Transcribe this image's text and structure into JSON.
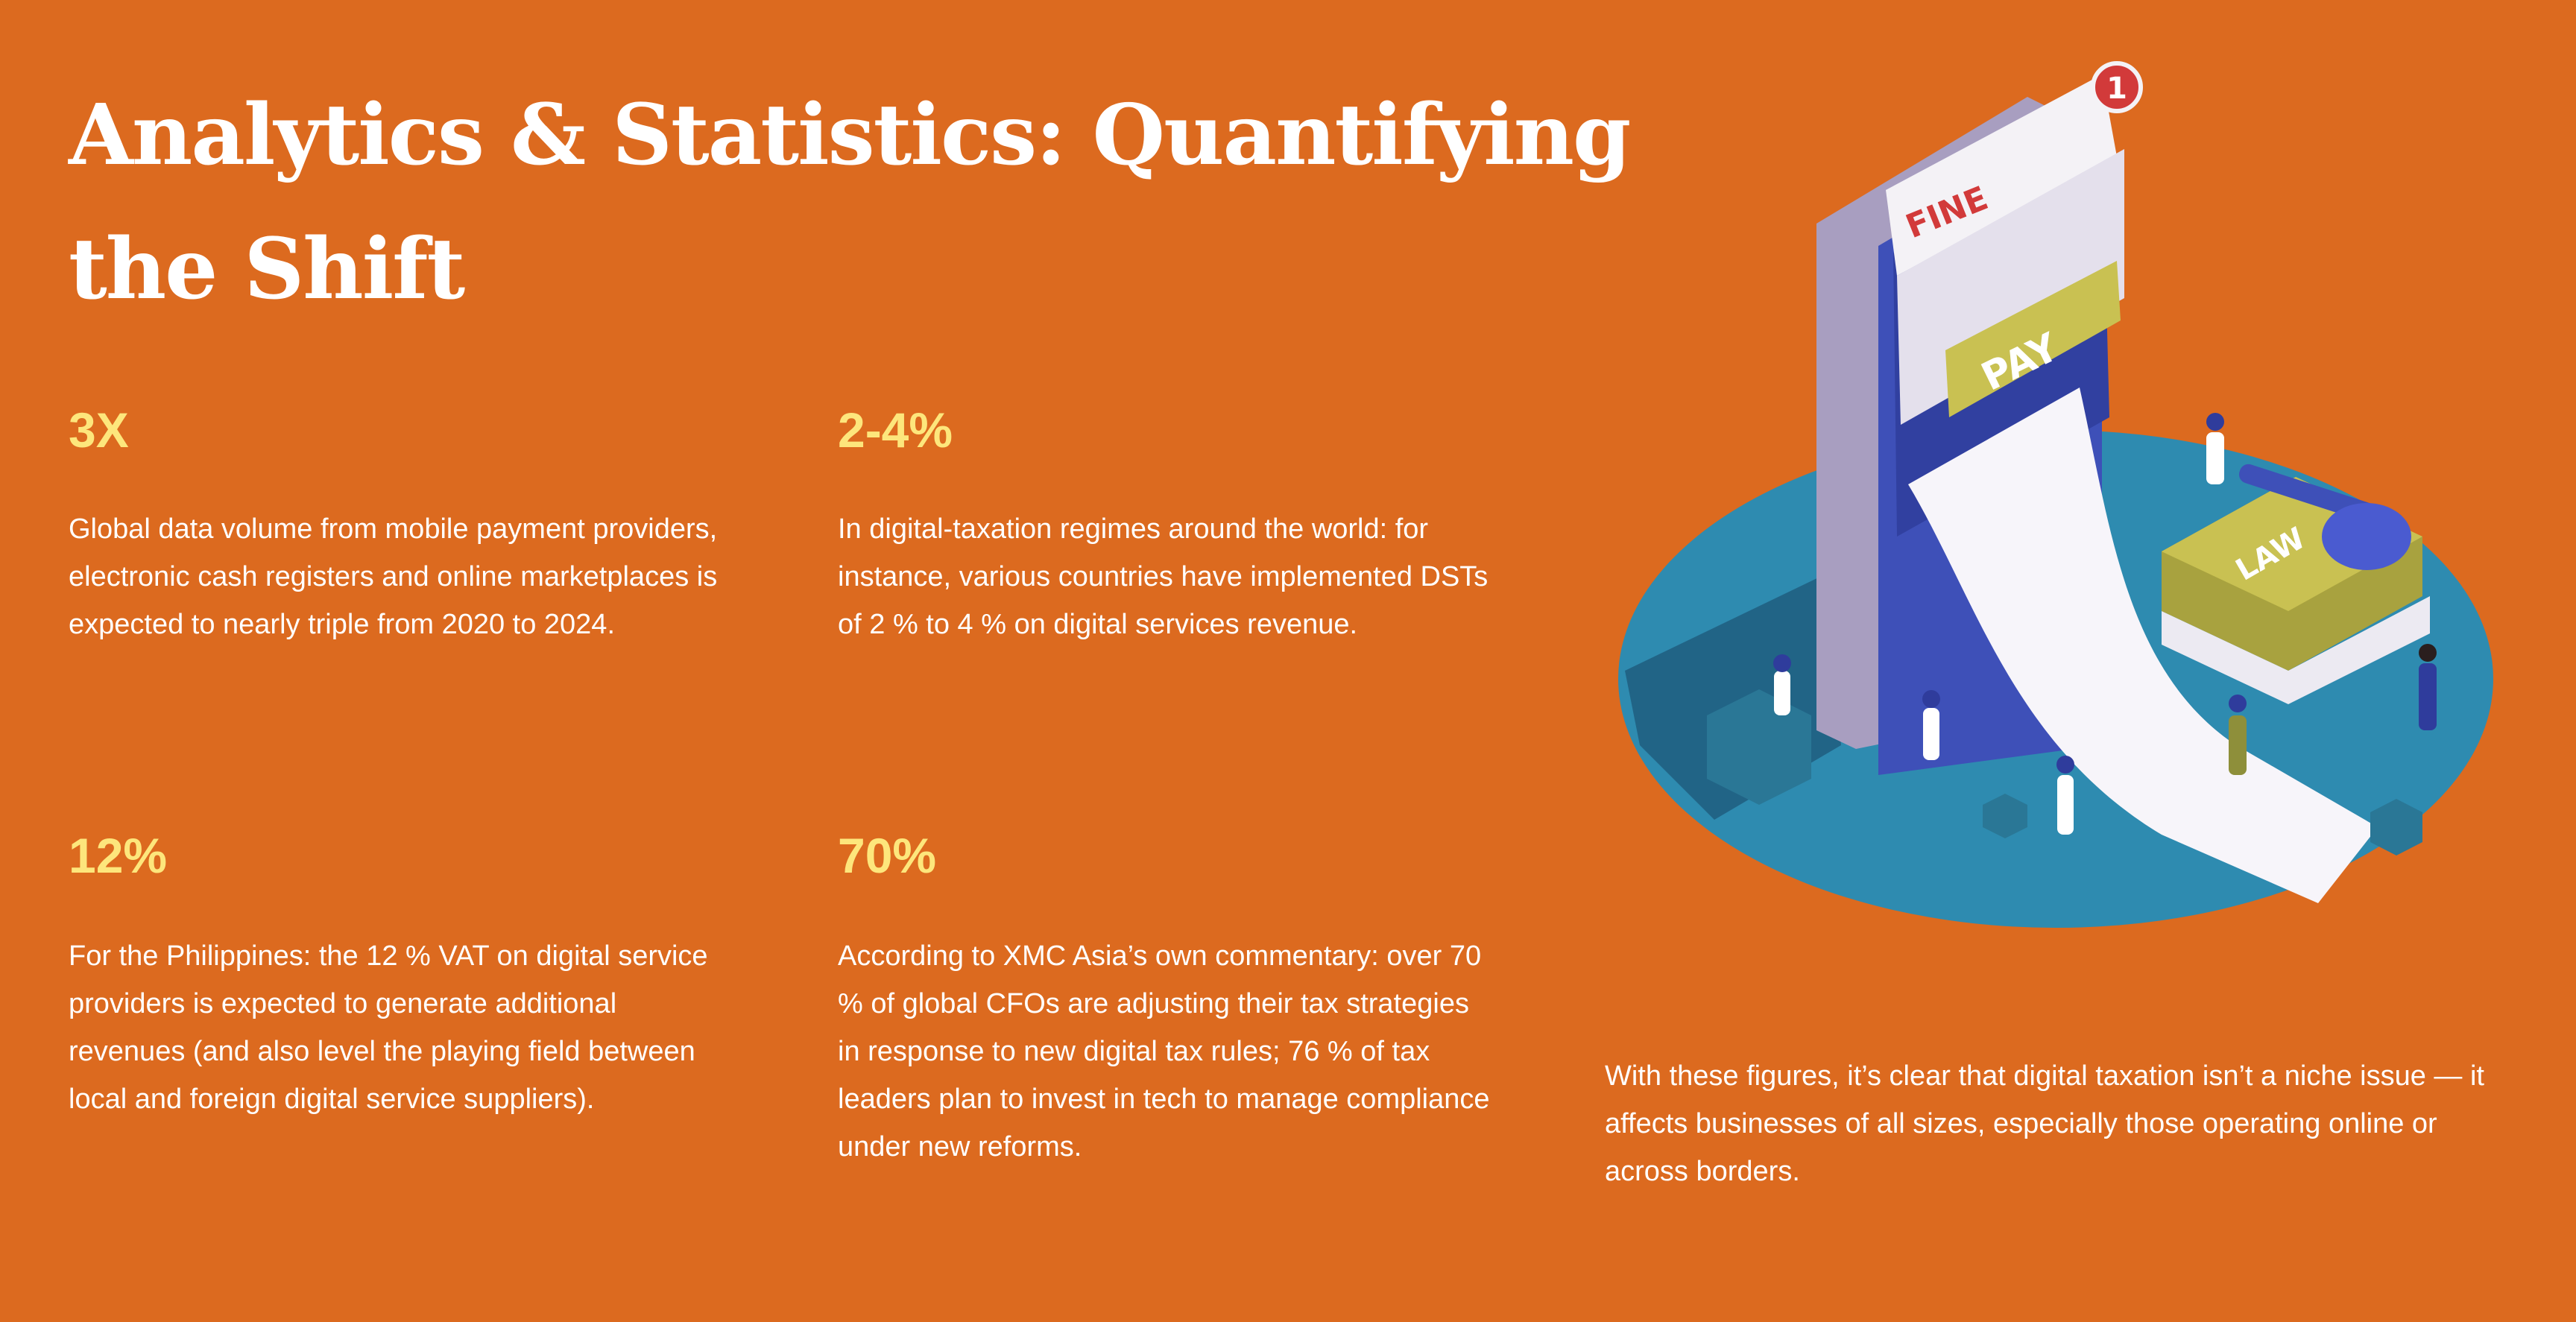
{
  "title": "Analytics & Statistics: Quantifying the Shift",
  "stats": [
    {
      "value": "3X",
      "text": "Global data volume from mobile payment providers, electronic cash registers and online marketplaces is expected to nearly triple from 2020 to 2024."
    },
    {
      "value": "2-4%",
      "text": "In digital-taxation regimes around the world: for instance, various countries have implemented DSTs of 2 % to 4 % on digital services revenue."
    },
    {
      "value": "12%",
      "text": "For the Philippines: the 12 % VAT on digital service providers is expected to generate additional revenues (and also level the playing field between local and foreign digital service suppliers)."
    },
    {
      "value": "70%",
      "text": "According to XMC Asia’s own commentary: over 70 % of global CFOs are adjusting their tax strategies in response to new digital tax rules; 76 % of tax leaders plan to invest in tech to manage compliance under new reforms."
    }
  ],
  "closing": "With these figures, it’s clear that digital taxation isn’t a niche issue — it affects businesses of all sizes, especially those operating online or across borders.",
  "illustration": {
    "fine_label": "FINE",
    "pay_label": "PAY",
    "law_label": "LAW",
    "badge_count": "1"
  },
  "colors": {
    "background": "#DC6A1F",
    "accent": "#FDE67C",
    "platform": "#2E8BB0",
    "screen": "#3E50B8",
    "pay": "#C9C152"
  }
}
